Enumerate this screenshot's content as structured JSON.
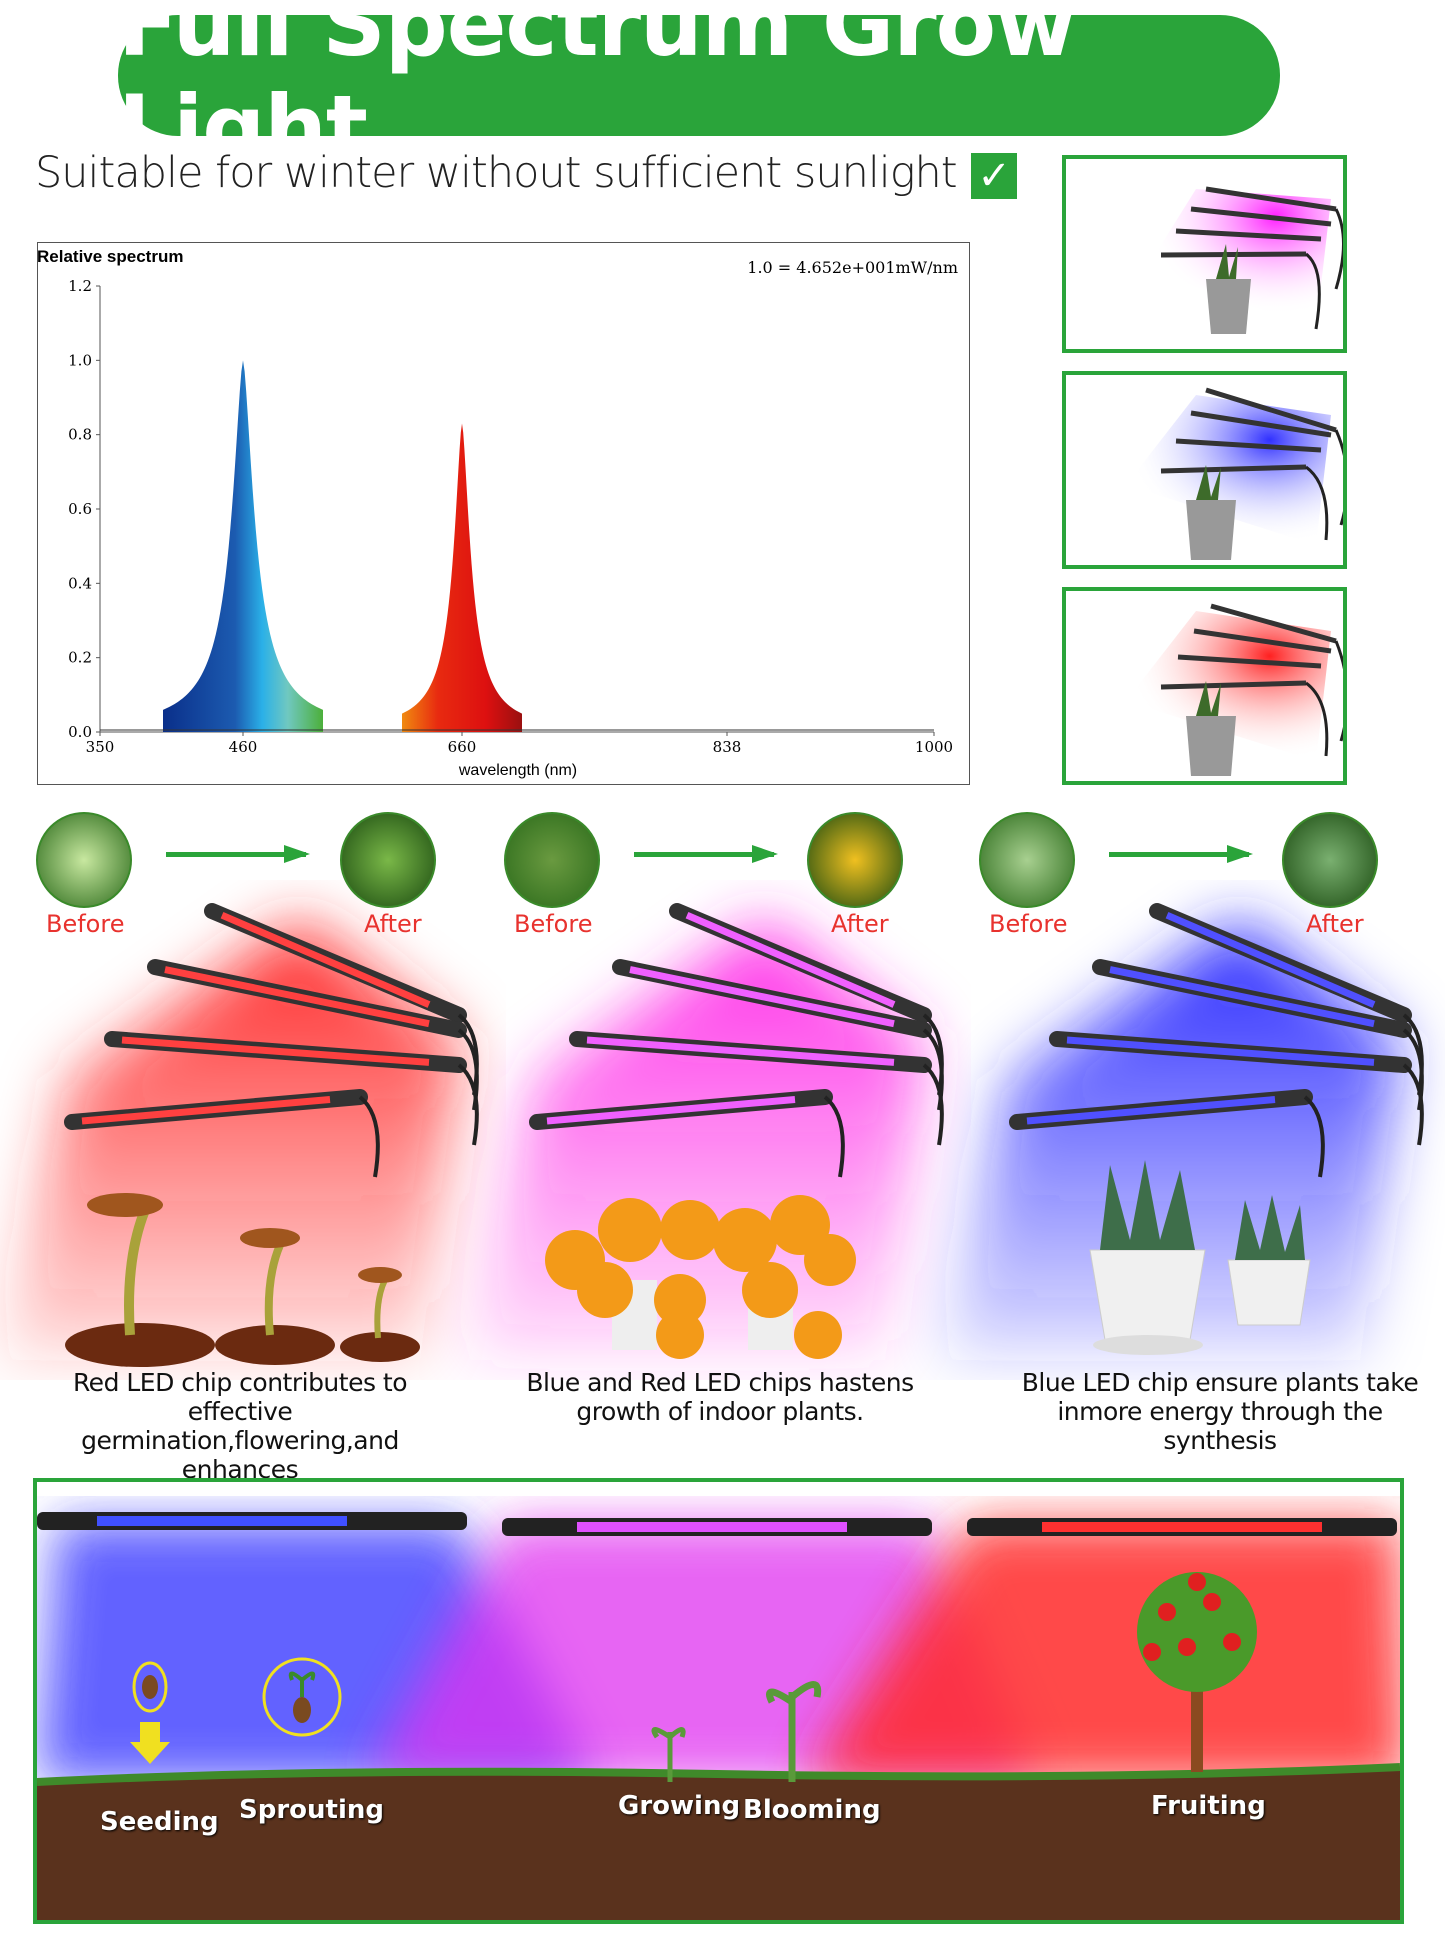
{
  "header": {
    "title": "Full Spectrum Grow Light",
    "subtitle": "Suitable for winter without sufficient sunlight",
    "check_icon": "✓"
  },
  "colors": {
    "brand_green": "#2aa43a",
    "red_light": "#ff2020",
    "pink_light": "#ff30e0",
    "blue_light": "#3030ff"
  },
  "chart_data": {
    "type": "area",
    "title": "Relative spectrum",
    "annotation": "1.0 = 4.652e+001mW/nm",
    "xlabel": "wavelength (nm)",
    "ylabel": "",
    "x_ticks": [
      "350",
      "460",
      "660",
      "838",
      "1000"
    ],
    "y_ticks": [
      "0.0",
      "0.2",
      "0.4",
      "0.6",
      "0.8",
      "1.0",
      "1.2"
    ],
    "xlim": [
      350,
      1000
    ],
    "ylim": [
      0,
      1.2
    ],
    "grid": false,
    "peaks": [
      {
        "wavelength": 460,
        "value": 1.0,
        "color": "blue"
      },
      {
        "wavelength": 660,
        "value": 0.83,
        "color": "red"
      }
    ]
  },
  "modes": {
    "panels": [
      {
        "color": "pink"
      },
      {
        "color": "blue"
      },
      {
        "color": "red"
      }
    ]
  },
  "comparisons": [
    {
      "before": "Before",
      "after": "After",
      "caption_line1": "Red LED chip contributes to effective",
      "caption_line2": "germination,flowering,and enhances"
    },
    {
      "before": "Before",
      "after": "After",
      "caption_line1": "Blue and Red LED chips hastens",
      "caption_line2": "growth of indoor plants."
    },
    {
      "before": "Before",
      "after": "After",
      "caption_line1": "Blue LED chip ensure plants take",
      "caption_line2": "inmore energy through the synthesis"
    }
  ],
  "growth_stages": [
    "Seeding",
    "Sprouting",
    "Growing",
    "Blooming",
    "Fruiting"
  ]
}
